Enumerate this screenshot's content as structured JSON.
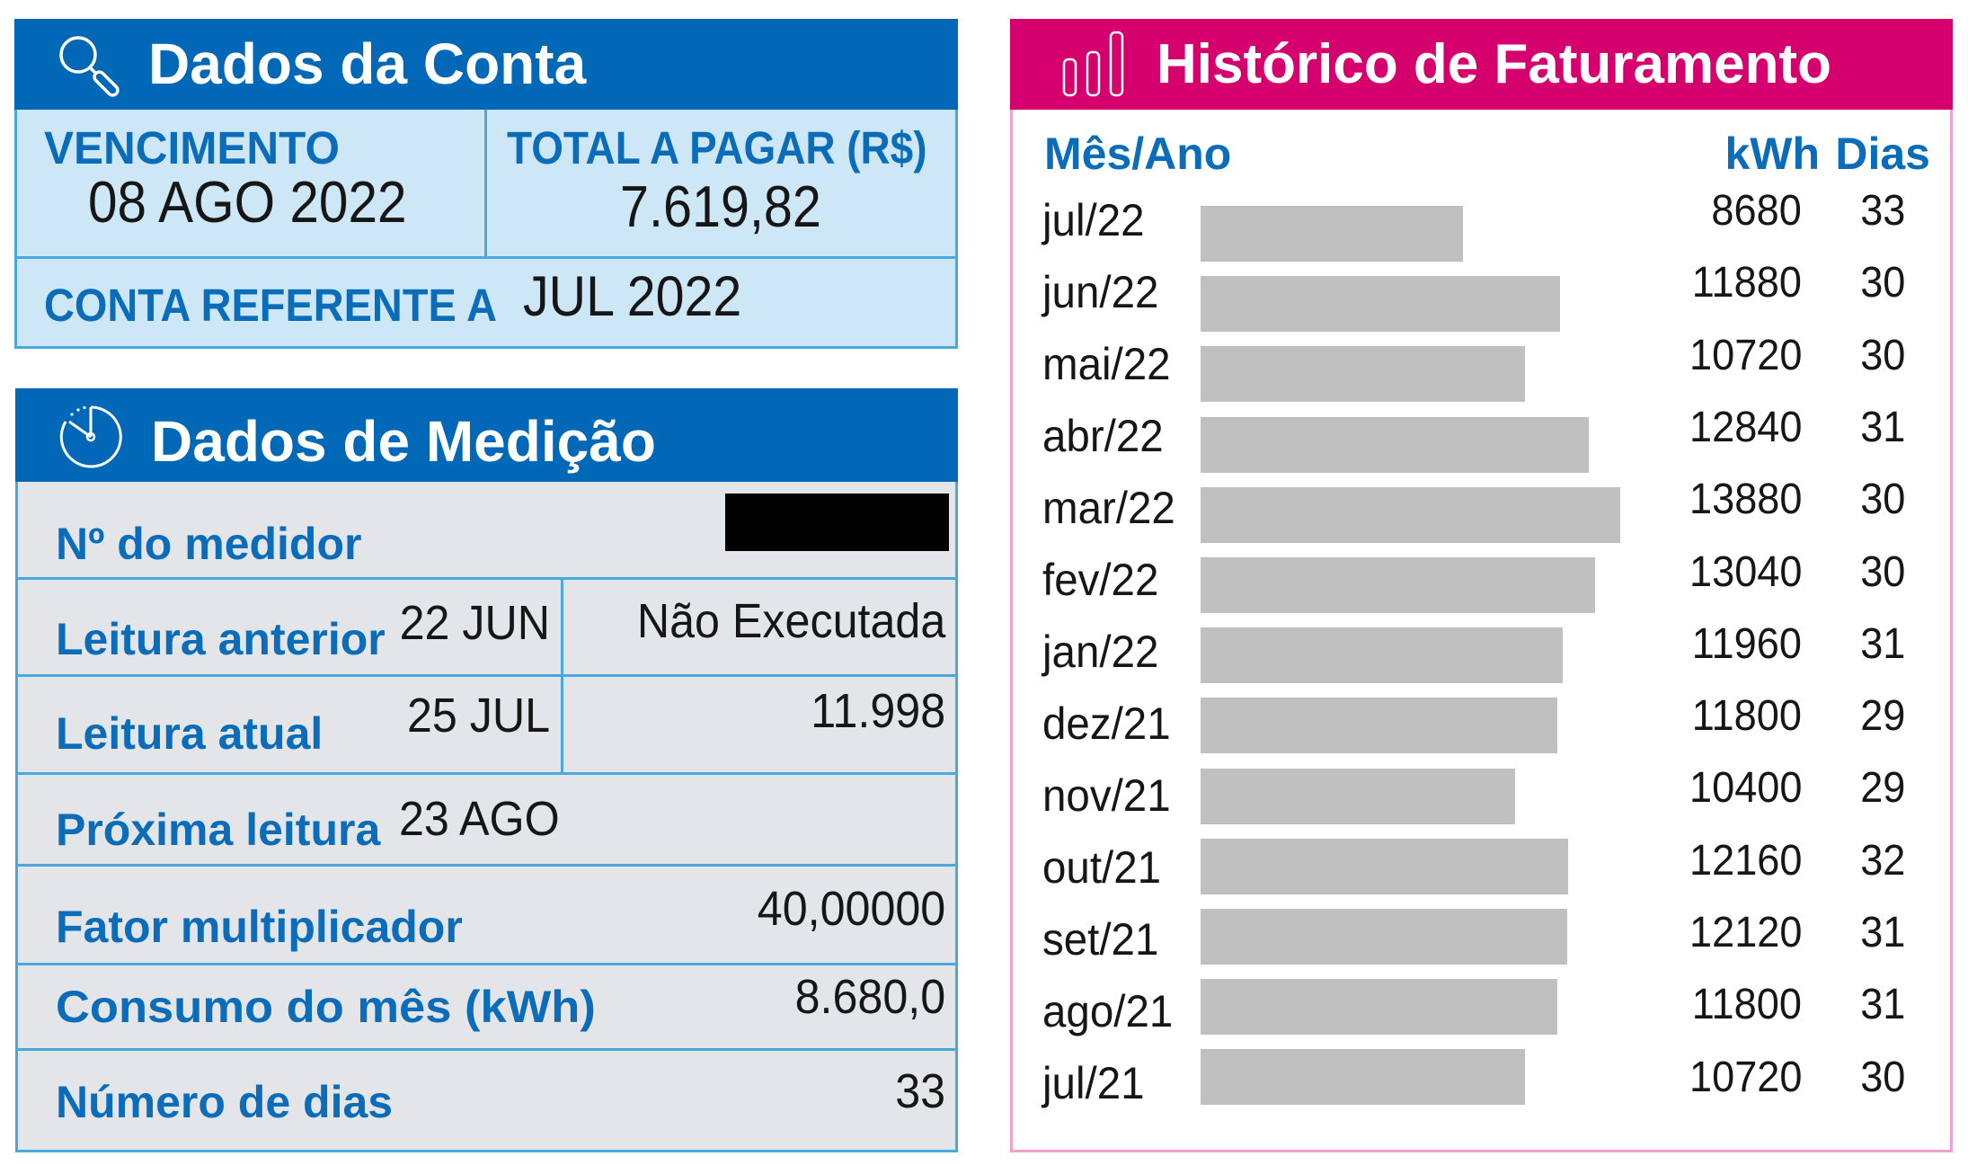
{
  "colors": {
    "conta_header": "#0068b6",
    "historico_header": "#d5006e",
    "label_blue": "#0b6cb9",
    "bar_gray": "#c0c0c0"
  },
  "dados_conta": {
    "title": "Dados da Conta",
    "icon": "magnifier-icon",
    "vencimento_label": "VENCIMENTO",
    "vencimento_value": "08 AGO 2022",
    "total_label": "TOTAL A PAGAR (R$)",
    "total_value": "7.619,82",
    "referente_label": "CONTA REFERENTE A",
    "referente_value": "JUL 2022"
  },
  "dados_medicao": {
    "title": "Dados de Medição",
    "icon": "clock-icon",
    "medidor_label": "Nº do medidor",
    "leitura_anterior_label": "Leitura anterior",
    "leitura_anterior_data": "22 JUN",
    "leitura_anterior_valor": "Não Executada",
    "leitura_atual_label": "Leitura atual",
    "leitura_atual_data": "25 JUL",
    "leitura_atual_valor": "11.998",
    "proxima_leitura_label": "Próxima leitura",
    "proxima_leitura_data": "23 AGO",
    "fator_label": "Fator multiplicador",
    "fator_valor": "40,00000",
    "consumo_label": "Consumo do mês (kWh)",
    "consumo_valor": "8.680,0",
    "dias_label": "Número de dias",
    "dias_valor": "33"
  },
  "historico": {
    "title": "Histórico de Faturamento",
    "icon": "bar-chart-icon",
    "col_mes": "Mês/Ano",
    "col_kwh": "kWh",
    "col_dias": "Dias",
    "rows": [
      {
        "mes": "jul/22",
        "kwh": "8680",
        "dias": "33"
      },
      {
        "mes": "jun/22",
        "kwh": "11880",
        "dias": "30"
      },
      {
        "mes": "mai/22",
        "kwh": "10720",
        "dias": "30"
      },
      {
        "mes": "abr/22",
        "kwh": "12840",
        "dias": "31"
      },
      {
        "mes": "mar/22",
        "kwh": "13880",
        "dias": "30"
      },
      {
        "mes": "fev/22",
        "kwh": "13040",
        "dias": "30"
      },
      {
        "mes": "jan/22",
        "kwh": "11960",
        "dias": "31"
      },
      {
        "mes": "dez/21",
        "kwh": "11800",
        "dias": "29"
      },
      {
        "mes": "nov/21",
        "kwh": "10400",
        "dias": "29"
      },
      {
        "mes": "out/21",
        "kwh": "12160",
        "dias": "32"
      },
      {
        "mes": "set/21",
        "kwh": "12120",
        "dias": "31"
      },
      {
        "mes": "ago/21",
        "kwh": "11800",
        "dias": "31"
      },
      {
        "mes": "jul/21",
        "kwh": "10720",
        "dias": "30"
      }
    ]
  }
}
